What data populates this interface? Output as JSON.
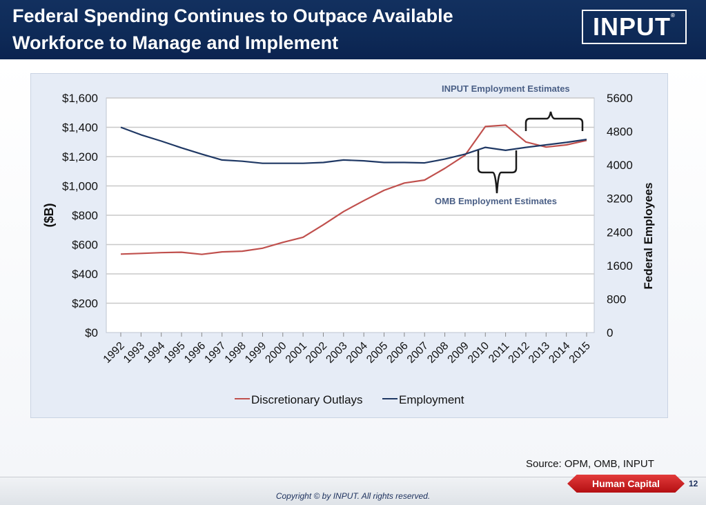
{
  "slide": {
    "title_line1": "Federal Spending Continues to Outpace Available",
    "title_line2": "Workforce to Manage and Implement",
    "logo_text": "INPUT",
    "logo_mark": "®",
    "source": "Source: OPM, OMB, INPUT",
    "badge": "Human Capital",
    "page_number": "12",
    "copyright": "Copyright © by INPUT. All rights reserved."
  },
  "colors": {
    "header": "#0e2a57",
    "outlays": "#c0504d",
    "employment": "#1f3864",
    "badge": "#c0161a"
  },
  "chart_data": {
    "type": "line",
    "categories": [
      "1992",
      "1993",
      "1994",
      "1995",
      "1996",
      "1997",
      "1998",
      "1999",
      "2000",
      "2001",
      "2002",
      "2003",
      "2004",
      "2005",
      "2006",
      "2007",
      "2008",
      "2009",
      "2010",
      "2011",
      "2012",
      "2013",
      "2014",
      "2015"
    ],
    "series": [
      {
        "name": "Discretionary Outlays",
        "axis": "left",
        "color": "#c0504d",
        "values": [
          535,
          540,
          545,
          548,
          533,
          550,
          555,
          575,
          615,
          650,
          735,
          825,
          900,
          970,
          1020,
          1040,
          1120,
          1210,
          1405,
          1415,
          1300,
          1265,
          1280,
          1310
        ]
      },
      {
        "name": "Employment",
        "axis": "right",
        "color": "#1f3864",
        "values": [
          4900,
          4720,
          4570,
          4410,
          4260,
          4120,
          4090,
          4040,
          4040,
          4040,
          4060,
          4120,
          4100,
          4060,
          4060,
          4050,
          4140,
          4260,
          4420,
          4350,
          4420,
          4480,
          4540,
          4610
        ]
      }
    ],
    "y_left": {
      "label": "($B)",
      "min": 0,
      "max": 1600,
      "ticks": [
        "$0",
        "$200",
        "$400",
        "$600",
        "$800",
        "$1,000",
        "$1,200",
        "$1,400",
        "$1,600"
      ]
    },
    "y_right": {
      "label": "Federal Employees",
      "min": 0,
      "max": 5600,
      "ticks": [
        "0",
        "800",
        "1600",
        "2400",
        "3200",
        "4000",
        "4800",
        "5600"
      ]
    },
    "annotations": {
      "input": "INPUT Employment Estimates",
      "omb": "OMB Employment Estimates"
    },
    "legend_position": "bottom",
    "grid": true
  }
}
